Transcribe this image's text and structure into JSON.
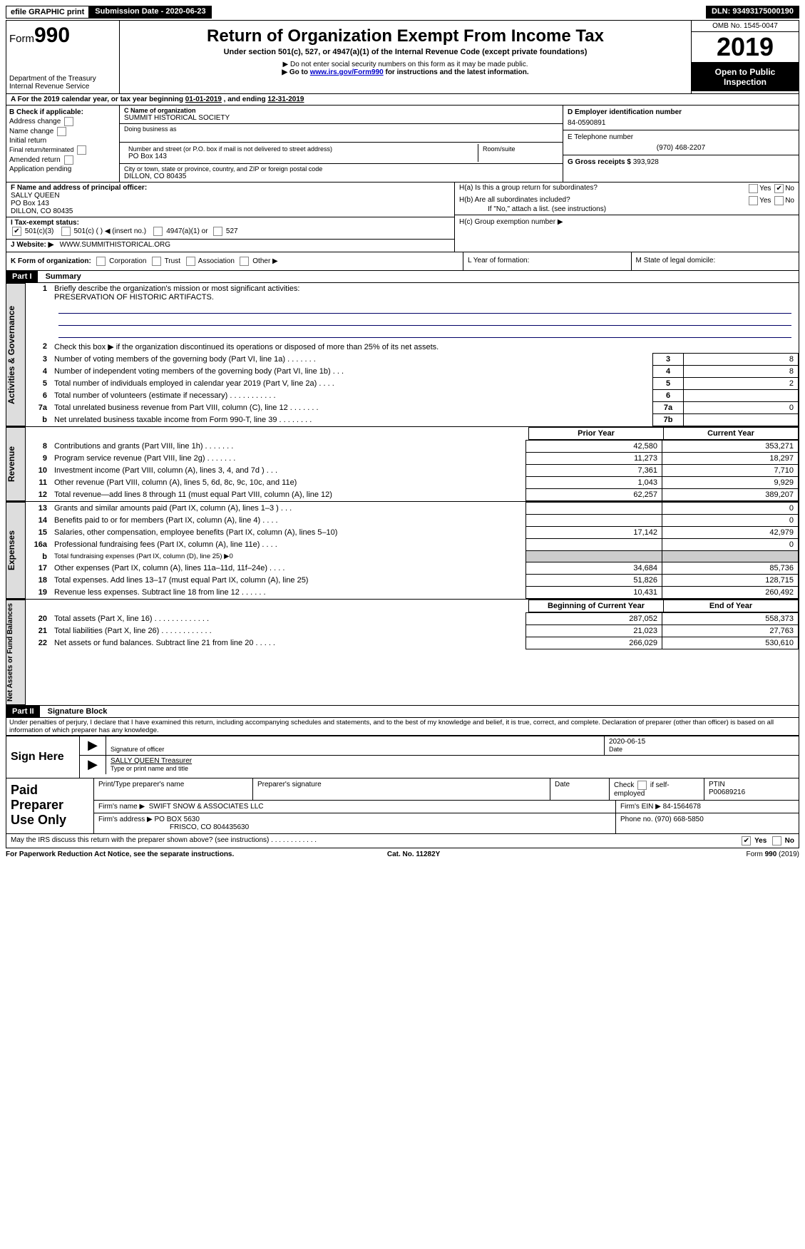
{
  "topbar": {
    "efile": "efile GRAPHIC print",
    "subdate_label": "Submission Date - ",
    "subdate": "2020-06-23",
    "dln_label": "DLN: ",
    "dln": "93493175000190"
  },
  "header": {
    "form_prefix": "Form",
    "form_num": "990",
    "dept1": "Department of the Treasury",
    "dept2": "Internal Revenue Service",
    "title": "Return of Organization Exempt From Income Tax",
    "sub": "Under section 501(c), 527, or 4947(a)(1) of the Internal Revenue Code (except private foundations)",
    "note1": "▶ Do not enter social security numbers on this form as it may be made public.",
    "note2_pre": "▶ Go to ",
    "note2_link": "www.irs.gov/Form990",
    "note2_post": " for instructions and the latest information.",
    "omb": "OMB No. 1545-0047",
    "year": "2019",
    "open": "Open to Public Inspection"
  },
  "rowA": {
    "text_pre": "A   For the 2019 calendar year, or tax year beginning ",
    "begin": "01-01-2019",
    "mid": "     , and ending ",
    "end": "12-31-2019"
  },
  "colB": {
    "label": "B Check if applicable:",
    "items": [
      "Address change",
      "Name change",
      "Initial return",
      "Final return/terminated",
      "Amended return",
      "Application pending"
    ]
  },
  "colC": {
    "name_lbl": "C Name of organization",
    "name": "SUMMIT HISTORICAL SOCIETY",
    "dba_lbl": "Doing business as",
    "addr_lbl": "Number and street (or P.O. box if mail is not delivered to street address)",
    "room_lbl": "Room/suite",
    "addr": "PO Box 143",
    "city_lbl": "City or town, state or province, country, and ZIP or foreign postal code",
    "city": "DILLON, CO  80435"
  },
  "colD": {
    "ein_lbl": "D Employer identification number",
    "ein": "84-0590891",
    "tel_lbl": "E Telephone number",
    "tel": "(970) 468-2207",
    "gross_lbl": "G Gross receipts $ ",
    "gross": "393,928"
  },
  "rowF": {
    "lbl": "F Name and address of principal officer:",
    "name": "SALLY QUEEN",
    "addr1": "PO Box 143",
    "addr2": "DILLON, CO  80435"
  },
  "rowH": {
    "a": "H(a)   Is this a group return for subordinates?",
    "b": "H(b)   Are all subordinates included?",
    "bnote": "If \"No,\" attach a list. (see instructions)",
    "c": "H(c)   Group exemption number ▶",
    "yes": "Yes",
    "no": "No"
  },
  "rowI": {
    "lbl": "I     Tax-exempt status:",
    "o1": "501(c)(3)",
    "o2": "501(c) (  ) ◀ (insert no.)",
    "o3": "4947(a)(1) or",
    "o4": "527"
  },
  "rowJ": {
    "lbl": "J    Website: ▶",
    "val": "WWW.SUMMITHISTORICAL.ORG"
  },
  "rowK": {
    "lbl": "K Form of organization:",
    "opts": [
      "Corporation",
      "Trust",
      "Association",
      "Other ▶"
    ],
    "l_lbl": "L Year of formation:",
    "m_lbl": "M State of legal domicile:"
  },
  "parts": {
    "p1": "Part I",
    "p1t": "Summary",
    "p2": "Part II",
    "p2t": "Signature Block"
  },
  "sidelabels": {
    "s1": "Activities & Governance",
    "s2": "Revenue",
    "s3": "Expenses",
    "s4": "Net Assets or Fund Balances"
  },
  "summary": {
    "l1": "Briefly describe the organization's mission or most significant activities:",
    "mission": "PRESERVATION OF HISTORIC ARTIFACTS.",
    "l2": "Check this box ▶        if the organization discontinued its operations or disposed of more than 25% of its net assets.",
    "cols": {
      "prior": "Prior Year",
      "current": "Current Year",
      "beg": "Beginning of Current Year",
      "end": "End of Year"
    },
    "rows": [
      {
        "n": "3",
        "t": "Number of voting members of the governing body (Part VI, line 1a)   .    .    .    .    .    .    .",
        "b": "3",
        "v": "8"
      },
      {
        "n": "4",
        "t": "Number of independent voting members of the governing body (Part VI, line 1b)   .    .    .",
        "b": "4",
        "v": "8"
      },
      {
        "n": "5",
        "t": "Total number of individuals employed in calendar year 2019 (Part V, line 2a)   .    .    .    .",
        "b": "5",
        "v": "2"
      },
      {
        "n": "6",
        "t": "Total number of volunteers (estimate if necessary)   .    .    .    .    .    .    .    .    .    .    .",
        "b": "6",
        "v": ""
      },
      {
        "n": "7a",
        "t": "Total unrelated business revenue from Part VIII, column (C), line 12   .    .    .    .    .    .    .",
        "b": "7a",
        "v": "0"
      },
      {
        "n": "b",
        "t": "Net unrelated business taxable income from Form 990-T, line 39   .    .    .    .    .    .    .    .",
        "b": "7b",
        "v": ""
      }
    ],
    "rev": [
      {
        "n": "8",
        "t": "Contributions and grants (Part VIII, line 1h)   .    .    .    .    .    .    .",
        "p": "42,580",
        "c": "353,271"
      },
      {
        "n": "9",
        "t": "Program service revenue (Part VIII, line 2g)   .    .    .    .    .    .    .",
        "p": "11,273",
        "c": "18,297"
      },
      {
        "n": "10",
        "t": "Investment income (Part VIII, column (A), lines 3, 4, and 7d )   .    .    .",
        "p": "7,361",
        "c": "7,710"
      },
      {
        "n": "11",
        "t": "Other revenue (Part VIII, column (A), lines 5, 6d, 8c, 9c, 10c, and 11e)",
        "p": "1,043",
        "c": "9,929"
      },
      {
        "n": "12",
        "t": "Total revenue—add lines 8 through 11 (must equal Part VIII, column (A), line 12)",
        "p": "62,257",
        "c": "389,207"
      }
    ],
    "exp": [
      {
        "n": "13",
        "t": "Grants and similar amounts paid (Part IX, column (A), lines 1–3 )   .    .    .",
        "p": "",
        "c": "0"
      },
      {
        "n": "14",
        "t": "Benefits paid to or for members (Part IX, column (A), line 4)   .    .    .    .",
        "p": "",
        "c": "0"
      },
      {
        "n": "15",
        "t": "Salaries, other compensation, employee benefits (Part IX, column (A), lines 5–10)",
        "p": "17,142",
        "c": "42,979"
      },
      {
        "n": "16a",
        "t": "Professional fundraising fees (Part IX, column (A), line 11e)   .    .    .    .",
        "p": "",
        "c": "0"
      },
      {
        "n": "b",
        "t": "Total fundraising expenses (Part IX, column (D), line 25) ▶0",
        "p": "gray",
        "c": "gray",
        "small": true
      },
      {
        "n": "17",
        "t": "Other expenses (Part IX, column (A), lines 11a–11d, 11f–24e)   .    .    .    .",
        "p": "34,684",
        "c": "85,736"
      },
      {
        "n": "18",
        "t": "Total expenses. Add lines 13–17 (must equal Part IX, column (A), line 25)",
        "p": "51,826",
        "c": "128,715"
      },
      {
        "n": "19",
        "t": "Revenue less expenses. Subtract line 18 from line 12   .    .    .    .    .    .",
        "p": "10,431",
        "c": "260,492"
      }
    ],
    "net": [
      {
        "n": "20",
        "t": "Total assets (Part X, line 16)   .    .    .    .    .    .    .    .    .    .    .    .    .",
        "p": "287,052",
        "c": "558,373"
      },
      {
        "n": "21",
        "t": "Total liabilities (Part X, line 26)   .    .    .    .    .    .    .    .    .    .    .    .",
        "p": "21,023",
        "c": "27,763"
      },
      {
        "n": "22",
        "t": "Net assets or fund balances. Subtract line 21 from line 20   .    .    .    .    .",
        "p": "266,029",
        "c": "530,610"
      }
    ]
  },
  "perjury": "Under penalties of perjury, I declare that I have examined this return, including accompanying schedules and statements, and to the best of my knowledge and belief, it is true, correct, and complete. Declaration of preparer (other than officer) is based on all information of which preparer has any knowledge.",
  "sign": {
    "here": "Sign Here",
    "sigoff": "Signature of officer",
    "date": "2020-06-15",
    "datel": "Date",
    "name": "SALLY QUEEN Treasurer",
    "typel": "Type or print name and title"
  },
  "paid": {
    "title": "Paid Preparer Use Only",
    "h1": "Print/Type preparer's name",
    "h2": "Preparer's signature",
    "h3": "Date",
    "h4pre": "Check         if self-employed",
    "h5": "PTIN",
    "ptin": "P00689216",
    "fname_lbl": "Firm's name     ▶",
    "fname": "SWIFT SNOW & ASSOCIATES LLC",
    "fein_lbl": "Firm's EIN ▶",
    "fein": "84-1564678",
    "faddr_lbl": "Firm's address ▶",
    "faddr1": "PO BOX 5630",
    "faddr2": "FRISCO, CO  804435630",
    "phone_lbl": "Phone no. ",
    "phone": "(970) 668-5850"
  },
  "footer": {
    "discuss": "May the IRS discuss this return with the preparer shown above? (see instructions)   .    .    .    .    .    .    .    .    .    .    .    .",
    "yes": "Yes",
    "no": "No",
    "pra": "For Paperwork Reduction Act Notice, see the separate instructions.",
    "cat": "Cat. No. 11282Y",
    "form": "Form 990 (2019)"
  }
}
